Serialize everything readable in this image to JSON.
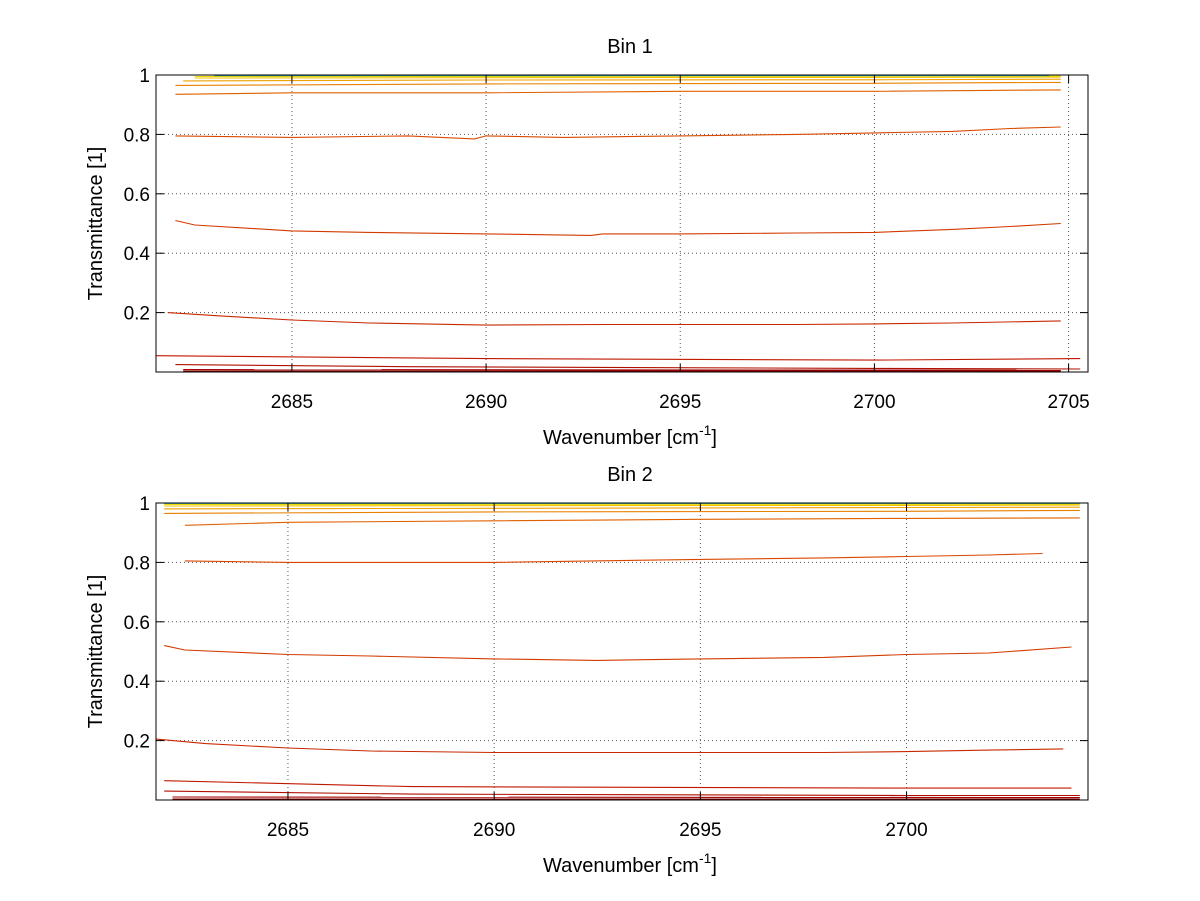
{
  "chart_data": [
    {
      "type": "line",
      "title": "Bin 1",
      "xlabel": "Wavenumber [cm",
      "xlabel_sup": "-1",
      "xlabel_end": "]",
      "ylabel": "Transmittance [1]",
      "xlim": [
        2681.5,
        2705.5
      ],
      "ylim": [
        0,
        1
      ],
      "xticks": [
        2685,
        2690,
        2695,
        2700,
        2705
      ],
      "yticks": [
        0.2,
        0.4,
        0.6,
        0.8,
        1
      ],
      "ytick_labels": [
        "0.2",
        "0.4",
        "0.6",
        "0.8",
        "1"
      ],
      "grid": true,
      "series": [
        {
          "color": "#8b0000",
          "x": [
            2682.2,
            2704.8
          ],
          "y": [
            0.003,
            0.003
          ]
        },
        {
          "color": "#a00000",
          "x": [
            2682.2,
            2704.8
          ],
          "y": [
            0.008,
            0.006
          ]
        },
        {
          "color": "#b01000",
          "x": [
            2682,
            2688,
            2700,
            2705.3
          ],
          "y": [
            0.025,
            0.018,
            0.012,
            0.01
          ]
        },
        {
          "color": "#c01800",
          "x": [
            2681.5,
            2690,
            2700,
            2705.3
          ],
          "y": [
            0.055,
            0.045,
            0.04,
            0.045
          ]
        },
        {
          "color": "#c82800",
          "x": [
            2681.8,
            2683,
            2685,
            2687,
            2690,
            2693,
            2695,
            2698,
            2700,
            2702,
            2704.8
          ],
          "y": [
            0.2,
            0.19,
            0.175,
            0.165,
            0.158,
            0.16,
            0.16,
            0.16,
            0.162,
            0.165,
            0.172
          ]
        },
        {
          "color": "#d23a00",
          "x": [
            2682,
            2682.5,
            2685,
            2687,
            2690,
            2692.7,
            2693,
            2695,
            2698,
            2700,
            2702,
            2703.5,
            2704.8
          ],
          "y": [
            0.51,
            0.495,
            0.475,
            0.47,
            0.465,
            0.46,
            0.465,
            0.465,
            0.468,
            0.47,
            0.48,
            0.49,
            0.5
          ]
        },
        {
          "color": "#da4800",
          "x": [
            2682,
            2685,
            2688,
            2689.7,
            2690,
            2692,
            2695,
            2698,
            2700,
            2702,
            2703.5,
            2704.8
          ],
          "y": [
            0.795,
            0.79,
            0.795,
            0.785,
            0.795,
            0.79,
            0.795,
            0.8,
            0.805,
            0.81,
            0.82,
            0.825
          ]
        },
        {
          "color": "#e06000",
          "x": [
            2682,
            2685,
            2690,
            2695,
            2700,
            2704.8
          ],
          "y": [
            0.935,
            0.94,
            0.94,
            0.945,
            0.945,
            0.95
          ]
        },
        {
          "color": "#e88000",
          "x": [
            2682,
            2690,
            2700,
            2704.8
          ],
          "y": [
            0.965,
            0.97,
            0.972,
            0.975
          ]
        },
        {
          "color": "#f0a000",
          "x": [
            2682.2,
            2690,
            2700,
            2704.8
          ],
          "y": [
            0.98,
            0.983,
            0.984,
            0.986
          ]
        },
        {
          "color": "#f5c000",
          "x": [
            2682.5,
            2690,
            2700,
            2704.8
          ],
          "y": [
            0.99,
            0.991,
            0.992,
            0.993
          ]
        },
        {
          "color": "#e8dd00",
          "x": [
            2682.5,
            2704.8
          ],
          "y": [
            0.995,
            0.996
          ]
        },
        {
          "color": "#20a0c0",
          "x": [
            2683,
            2704.5
          ],
          "y": [
            0.998,
            0.998
          ]
        }
      ]
    },
    {
      "type": "line",
      "title": "Bin 2",
      "xlabel": "Wavenumber [cm",
      "xlabel_sup": "-1",
      "xlabel_end": "]",
      "ylabel": "Transmittance [1]",
      "xlim": [
        2681.8,
        2704.4
      ],
      "ylim": [
        0,
        1
      ],
      "xticks": [
        2685,
        2690,
        2695,
        2700
      ],
      "yticks": [
        0.2,
        0.4,
        0.6,
        0.8,
        1
      ],
      "ytick_labels": [
        "0.2",
        "0.4",
        "0.6",
        "0.8",
        "1"
      ],
      "grid": true,
      "series": [
        {
          "color": "#8b0000",
          "x": [
            2682.2,
            2704.2
          ],
          "y": [
            0.003,
            0.003
          ]
        },
        {
          "color": "#a00000",
          "x": [
            2682.2,
            2704.2
          ],
          "y": [
            0.01,
            0.008
          ]
        },
        {
          "color": "#b01000",
          "x": [
            2682,
            2688,
            2700,
            2704.2
          ],
          "y": [
            0.03,
            0.02,
            0.015,
            0.015
          ]
        },
        {
          "color": "#c01800",
          "x": [
            2682,
            2688,
            2700,
            2704
          ],
          "y": [
            0.065,
            0.045,
            0.04,
            0.04
          ]
        },
        {
          "color": "#c82800",
          "x": [
            2681.8,
            2683,
            2685,
            2687,
            2690,
            2693,
            2695,
            2698,
            2700,
            2702,
            2703.8
          ],
          "y": [
            0.205,
            0.19,
            0.175,
            0.165,
            0.16,
            0.16,
            0.16,
            0.16,
            0.163,
            0.168,
            0.172
          ]
        },
        {
          "color": "#d23a00",
          "x": [
            2682,
            2682.5,
            2685,
            2687,
            2690,
            2692.5,
            2695,
            2698,
            2700,
            2702,
            2702.5,
            2704
          ],
          "y": [
            0.52,
            0.505,
            0.49,
            0.485,
            0.475,
            0.47,
            0.475,
            0.48,
            0.49,
            0.495,
            0.5,
            0.515
          ]
        },
        {
          "color": "#da4800",
          "x": [
            2682.5,
            2685,
            2690,
            2695,
            2698,
            2700,
            2702,
            2703.3
          ],
          "y": [
            0.805,
            0.8,
            0.8,
            0.81,
            0.815,
            0.82,
            0.825,
            0.83
          ]
        },
        {
          "color": "#e06000",
          "x": [
            2682.5,
            2685,
            2690,
            2695,
            2700,
            2704.2
          ],
          "y": [
            0.925,
            0.935,
            0.94,
            0.945,
            0.948,
            0.95
          ]
        },
        {
          "color": "#e88000",
          "x": [
            2682,
            2690,
            2700,
            2704.2
          ],
          "y": [
            0.965,
            0.97,
            0.972,
            0.975
          ]
        },
        {
          "color": "#f0a000",
          "x": [
            2682,
            2690,
            2700,
            2704.2
          ],
          "y": [
            0.98,
            0.982,
            0.985,
            0.986
          ]
        },
        {
          "color": "#f5c000",
          "x": [
            2682,
            2690,
            2700,
            2704.2
          ],
          "y": [
            0.99,
            0.991,
            0.992,
            0.993
          ]
        },
        {
          "color": "#e8dd00",
          "x": [
            2682,
            2704.2
          ],
          "y": [
            0.995,
            0.996
          ]
        },
        {
          "color": "#20a0c0",
          "x": [
            2682,
            2704.2
          ],
          "y": [
            0.999,
            0.999
          ]
        }
      ]
    }
  ]
}
